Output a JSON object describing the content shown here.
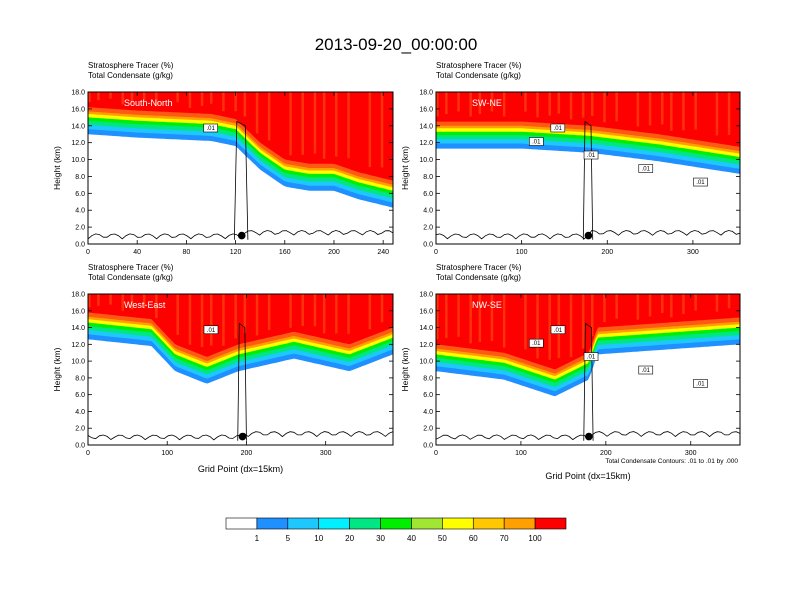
{
  "title": "2013-09-20_00:00:00",
  "colors": [
    "#ffffff",
    "#1e90ff",
    "#1ec8ff",
    "#00f0ff",
    "#00e682",
    "#00ee00",
    "#a0e632",
    "#ffff00",
    "#ffc800",
    "#ffa000",
    "#ff5a14",
    "#ff0000"
  ],
  "chart_data": [
    {
      "type": "heatmap",
      "section": "South-North",
      "title_lines": [
        "Stratosphere Tracer   (%)",
        "Total Condensate   (g/kg)"
      ],
      "xlabel": "",
      "ylabel": "Height (km)",
      "xlim": [
        0,
        248
      ],
      "ylim": [
        0,
        18
      ],
      "xticks": [
        0,
        40,
        80,
        120,
        160,
        200,
        240
      ],
      "yticks": [
        0,
        2,
        4,
        6,
        8,
        10,
        12,
        14,
        16,
        18
      ],
      "tracer_100pct_base_km": [
        [
          0,
          16.2
        ],
        [
          40,
          15.8
        ],
        [
          100,
          15.4
        ],
        [
          120,
          14.8
        ],
        [
          140,
          12.0
        ],
        [
          160,
          10.0
        ],
        [
          180,
          9.5
        ],
        [
          200,
          9.5
        ],
        [
          220,
          8.5
        ],
        [
          248,
          7.5
        ]
      ],
      "contour_labels": [
        ".01"
      ],
      "marker": {
        "x": 125,
        "y": 1.0
      }
    },
    {
      "type": "heatmap",
      "section": "SW-NE",
      "title_lines": [
        "Stratosphere Tracer   (%)",
        "Total Condensate   (g/kg)"
      ],
      "xlabel": "",
      "ylabel": "Height (km)",
      "xlim": [
        0,
        355
      ],
      "ylim": [
        0,
        18
      ],
      "xticks": [
        0,
        100,
        200,
        300
      ],
      "yticks": [
        0,
        2,
        4,
        6,
        8,
        10,
        12,
        14,
        16,
        18
      ],
      "tracer_100pct_base_km": [
        [
          0,
          14.5
        ],
        [
          100,
          14.5
        ],
        [
          180,
          14.0
        ],
        [
          260,
          13.0
        ],
        [
          355,
          11.5
        ]
      ],
      "contour_labels": [
        ".01",
        ".01",
        ".01",
        ".01",
        ".01"
      ],
      "marker": {
        "x": 178,
        "y": 1.0
      }
    },
    {
      "type": "heatmap",
      "section": "West-East",
      "title_lines": [
        "Stratosphere Tracer   (%)",
        "Total Condensate   (g/kg)"
      ],
      "xlabel": "Grid Point (dx=15km)",
      "ylabel": "Height (km)",
      "xlim": [
        0,
        385
      ],
      "ylim": [
        0,
        18
      ],
      "xticks": [
        0,
        100,
        200,
        300
      ],
      "yticks": [
        0,
        2,
        4,
        6,
        8,
        10,
        12,
        14,
        16,
        18
      ],
      "tracer_100pct_base_km": [
        [
          0,
          15.8
        ],
        [
          80,
          15.0
        ],
        [
          110,
          12.0
        ],
        [
          150,
          10.5
        ],
        [
          190,
          12.0
        ],
        [
          260,
          13.5
        ],
        [
          330,
          12.0
        ],
        [
          385,
          14.0
        ]
      ],
      "contour_labels": [
        ".01"
      ],
      "marker": {
        "x": 195,
        "y": 1.0
      }
    },
    {
      "type": "heatmap",
      "section": "NW-SE",
      "title_lines": [
        "Stratosphere Tracer   (%)",
        "Total Condensate   (g/kg)"
      ],
      "xlabel": "Grid Point (dx=15km)",
      "ylabel": "Height (km)",
      "xlim": [
        0,
        358
      ],
      "ylim": [
        0,
        18
      ],
      "xticks": [
        0,
        100,
        200,
        300
      ],
      "yticks": [
        0,
        2,
        4,
        6,
        8,
        10,
        12,
        14,
        16,
        18
      ],
      "tracer_100pct_base_km": [
        [
          0,
          12.0
        ],
        [
          80,
          11.0
        ],
        [
          140,
          9.0
        ],
        [
          180,
          11.0
        ],
        [
          190,
          14.0
        ],
        [
          260,
          14.5
        ],
        [
          358,
          15.2
        ]
      ],
      "contour_labels": [
        ".01",
        ".01",
        ".01",
        ".01",
        ".01"
      ],
      "marker": {
        "x": 180,
        "y": 1.0
      }
    }
  ],
  "legend": {
    "levels": [
      "1",
      "5",
      "10",
      "20",
      "30",
      "40",
      "50",
      "60",
      "70",
      "100"
    ]
  },
  "contour_info": "Total Condensate Contours: .01 to .01 by .000"
}
